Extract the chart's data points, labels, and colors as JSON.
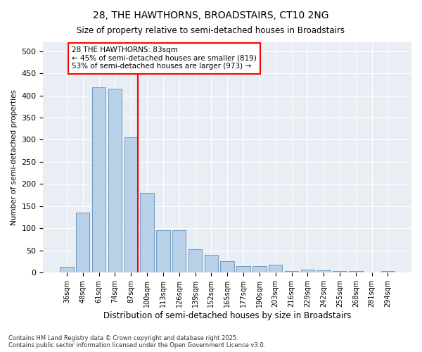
{
  "title": "28, THE HAWTHORNS, BROADSTAIRS, CT10 2NG",
  "subtitle": "Size of property relative to semi-detached houses in Broadstairs",
  "xlabel": "Distribution of semi-detached houses by size in Broadstairs",
  "ylabel": "Number of semi-detached properties",
  "categories": [
    "36sqm",
    "48sqm",
    "61sqm",
    "74sqm",
    "87sqm",
    "100sqm",
    "113sqm",
    "126sqm",
    "139sqm",
    "152sqm",
    "165sqm",
    "177sqm",
    "190sqm",
    "203sqm",
    "216sqm",
    "229sqm",
    "242sqm",
    "255sqm",
    "268sqm",
    "281sqm",
    "294sqm"
  ],
  "values": [
    13,
    135,
    418,
    415,
    305,
    180,
    95,
    95,
    53,
    40,
    25,
    15,
    15,
    18,
    4,
    6,
    5,
    4,
    4,
    1,
    3
  ],
  "bar_color": "#b8d0e8",
  "bar_edge_color": "#6090b8",
  "vline_index": 4,
  "vline_color": "red",
  "annotation_text": "28 THE HAWTHORNS: 83sqm\n← 45% of semi-detached houses are smaller (819)\n53% of semi-detached houses are larger (973) →",
  "footer": "Contains HM Land Registry data © Crown copyright and database right 2025.\nContains public sector information licensed under the Open Government Licence v3.0.",
  "ylim": [
    0,
    520
  ],
  "yticks": [
    0,
    50,
    100,
    150,
    200,
    250,
    300,
    350,
    400,
    450,
    500
  ],
  "plot_bg": "#e8eef4",
  "fig_bg": "white"
}
